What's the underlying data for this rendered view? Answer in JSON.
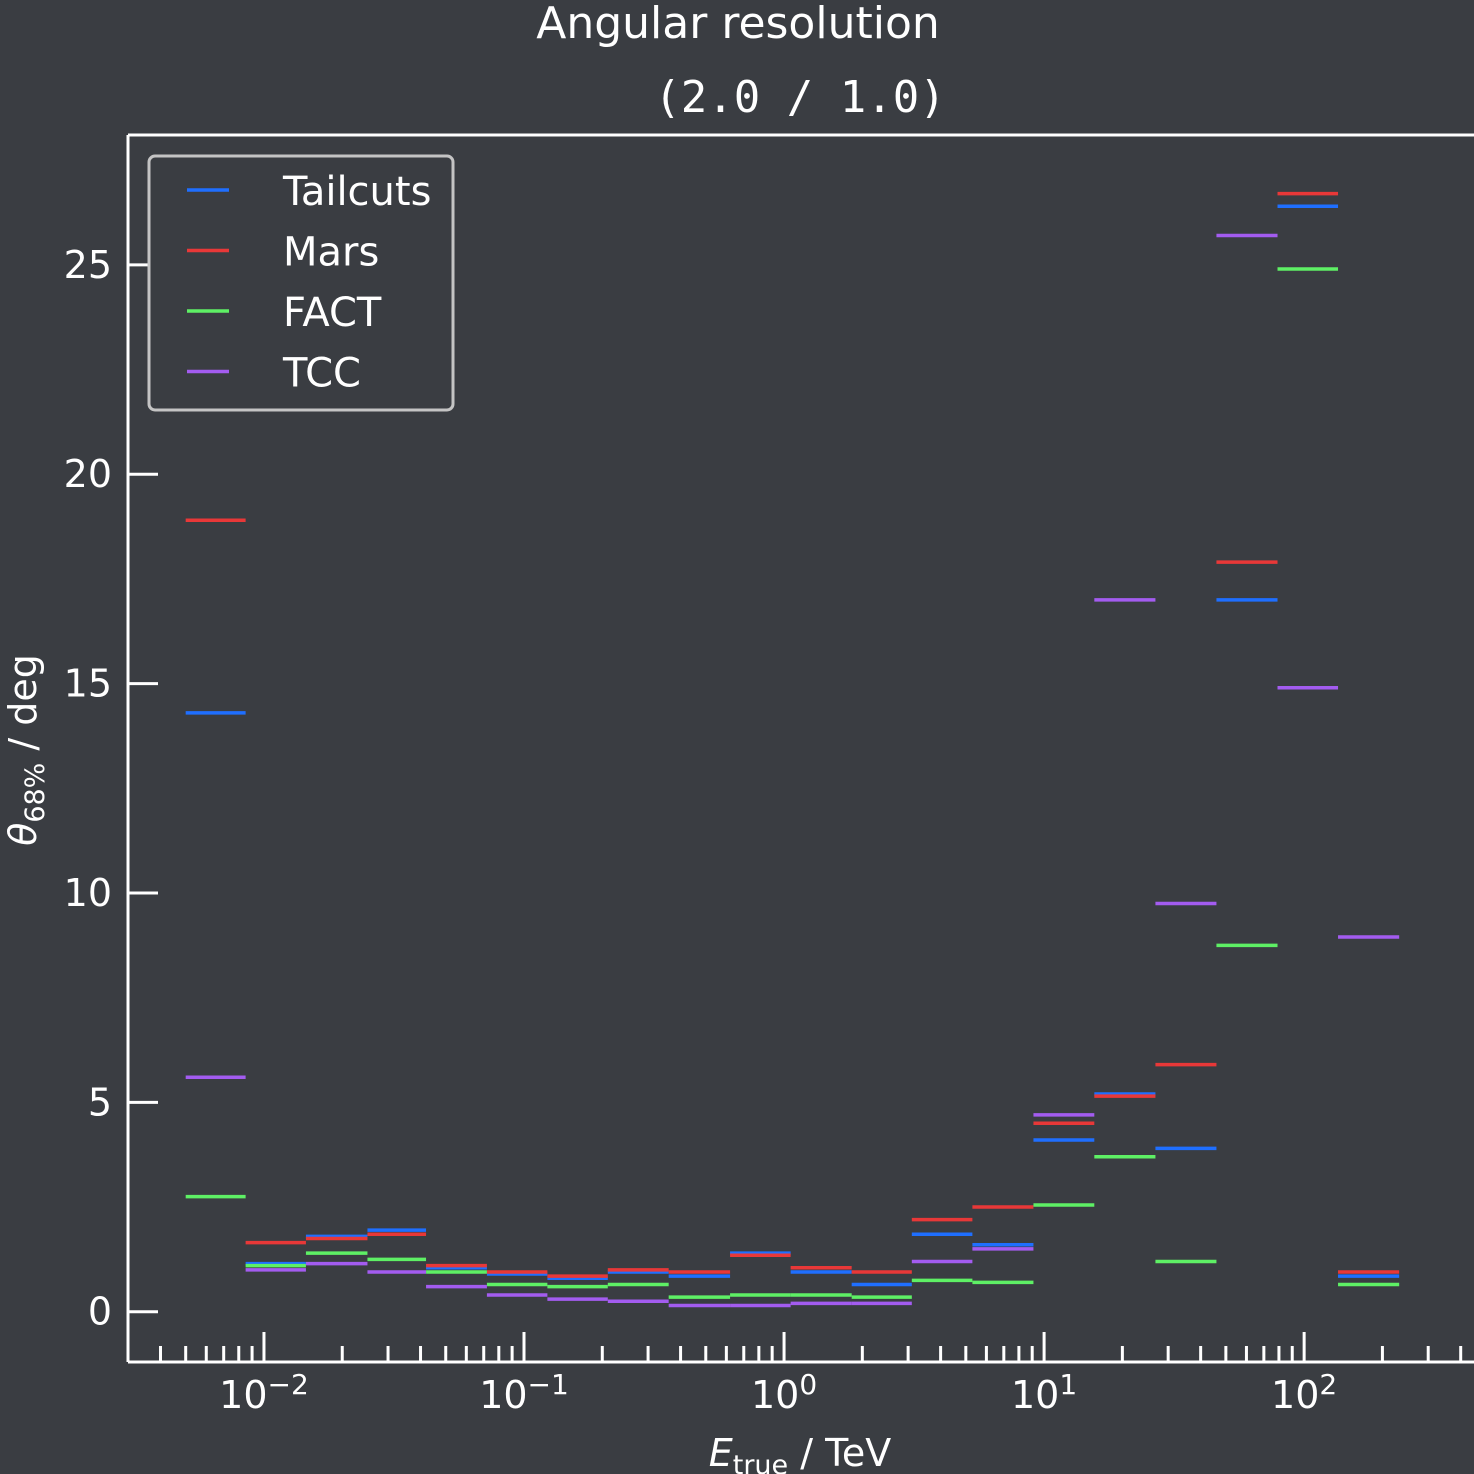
{
  "chart_data": {
    "type": "line",
    "title": "Angular resolution",
    "subtitle": "(2.0 / 1.0)",
    "xlabel": {
      "main": "E",
      "sub": "true",
      "rest": " / TeV"
    },
    "ylabel": {
      "main": "θ",
      "sub": "68%",
      "rest": " / deg"
    },
    "xscale": "log",
    "xlim": [
      0.003,
      450
    ],
    "ylim": [
      -1.2,
      28.1
    ],
    "yticks": [
      0,
      5,
      10,
      15,
      20,
      25
    ],
    "xticks": [
      {
        "value": 0.01,
        "base": "10",
        "exp": "−2"
      },
      {
        "value": 0.1,
        "base": "10",
        "exp": "−1"
      },
      {
        "value": 1,
        "base": "10",
        "exp": "0"
      },
      {
        "value": 10,
        "base": "10",
        "exp": "1"
      },
      {
        "value": 100,
        "base": "10",
        "exp": "2"
      }
    ],
    "bin_edges": [
      0.005,
      0.0085,
      0.0145,
      0.025,
      0.042,
      0.072,
      0.123,
      0.21,
      0.36,
      0.62,
      1.06,
      1.82,
      3.1,
      5.3,
      9.1,
      15.6,
      26.8,
      46,
      79,
      135,
      232
    ],
    "legend": {
      "position": "top-left"
    },
    "grid": false,
    "series": [
      {
        "name": "Tailcuts",
        "color": "#1f6fff",
        "values": [
          14.3,
          1.15,
          1.8,
          1.95,
          1.05,
          0.9,
          0.8,
          0.95,
          0.85,
          1.4,
          0.95,
          0.65,
          1.85,
          1.6,
          4.1,
          5.2,
          3.9,
          17.0,
          26.4,
          0.85
        ]
      },
      {
        "name": "Mars",
        "color": "#e83838",
        "values": [
          18.9,
          1.65,
          1.75,
          1.85,
          1.1,
          0.95,
          0.85,
          1.0,
          0.95,
          1.35,
          1.05,
          0.95,
          2.2,
          2.5,
          4.5,
          5.15,
          5.9,
          17.9,
          26.7,
          0.95
        ]
      },
      {
        "name": "FACT",
        "color": "#5ef065",
        "values": [
          2.75,
          1.1,
          1.4,
          1.25,
          0.95,
          0.65,
          0.6,
          0.65,
          0.35,
          0.4,
          0.4,
          0.35,
          0.75,
          0.7,
          2.55,
          3.7,
          1.2,
          8.75,
          24.9,
          0.65
        ]
      },
      {
        "name": "TCC",
        "color": "#a35cf0",
        "values": [
          5.6,
          1.0,
          1.15,
          0.95,
          0.6,
          0.4,
          0.3,
          0.25,
          0.15,
          0.15,
          0.2,
          0.2,
          1.2,
          1.5,
          4.7,
          17.0,
          9.75,
          25.7,
          14.9,
          8.95
        ]
      }
    ]
  }
}
